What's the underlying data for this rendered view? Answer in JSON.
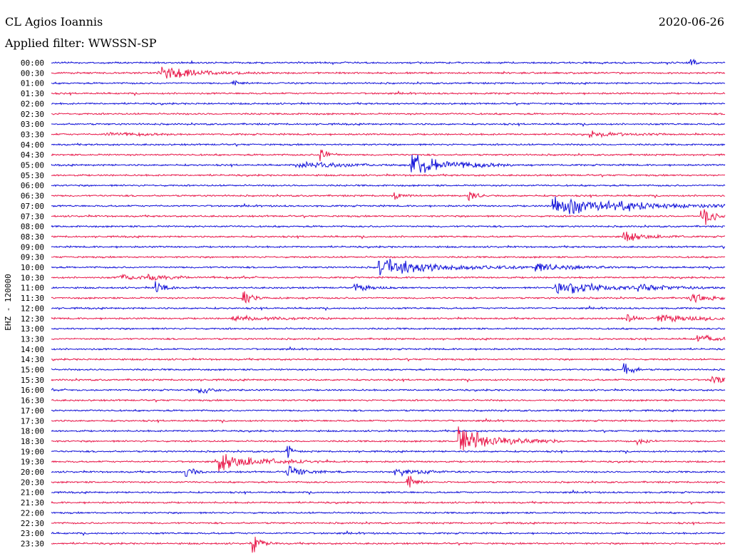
{
  "header": {
    "station": "CL Agios Ioannis",
    "date": "2020-06-26",
    "filter": "Applied filter: WWSSN-SP"
  },
  "chart_data": {
    "type": "line",
    "ylabel": "EHZ - 120000",
    "rows": [
      "00:00",
      "00:30",
      "01:00",
      "01:30",
      "02:00",
      "02:30",
      "03:00",
      "03:30",
      "04:00",
      "04:30",
      "05:00",
      "05:30",
      "06:00",
      "06:30",
      "07:00",
      "07:30",
      "08:00",
      "08:30",
      "09:00",
      "09:30",
      "10:00",
      "10:30",
      "11:00",
      "11:30",
      "12:00",
      "12:30",
      "13:00",
      "13:30",
      "14:00",
      "14:30",
      "15:00",
      "15:30",
      "16:00",
      "16:30",
      "17:00",
      "17:30",
      "18:00",
      "18:30",
      "19:00",
      "19:30",
      "20:00",
      "20:30",
      "21:00",
      "21:30",
      "22:00",
      "22:30",
      "23:00",
      "23:30"
    ],
    "colors": [
      "#1010d8",
      "#e8184a"
    ],
    "events": [
      {
        "row": 0,
        "t": 0.95,
        "amp": 1.0,
        "dur": 0.005
      },
      {
        "row": 1,
        "t": 0.16,
        "amp": 0.6,
        "dur": 0.05
      },
      {
        "row": 1,
        "t": 0.165,
        "amp": 1.4,
        "dur": 0.04
      },
      {
        "row": 2,
        "t": 0.27,
        "amp": 0.6,
        "dur": 0.01
      },
      {
        "row": 7,
        "t": 0.08,
        "amp": 0.6,
        "dur": 0.04
      },
      {
        "row": 7,
        "t": 0.8,
        "amp": 0.7,
        "dur": 0.04
      },
      {
        "row": 9,
        "t": 0.4,
        "amp": 1.5,
        "dur": 0.01
      },
      {
        "row": 10,
        "t": 0.535,
        "amp": 3.0,
        "dur": 0.05
      },
      {
        "row": 10,
        "t": 0.37,
        "amp": 0.8,
        "dur": 0.06
      },
      {
        "row": 13,
        "t": 0.51,
        "amp": 1.1,
        "dur": 0.01
      },
      {
        "row": 13,
        "t": 0.62,
        "amp": 1.5,
        "dur": 0.01
      },
      {
        "row": 14,
        "t": 0.745,
        "amp": 2.4,
        "dur": 0.1
      },
      {
        "row": 15,
        "t": 0.965,
        "amp": 2.6,
        "dur": 0.015
      },
      {
        "row": 17,
        "t": 0.85,
        "amp": 1.3,
        "dur": 0.03
      },
      {
        "row": 20,
        "t": 0.487,
        "amp": 1.9,
        "dur": 0.08
      },
      {
        "row": 20,
        "t": 0.72,
        "amp": 1.1,
        "dur": 0.04
      },
      {
        "row": 21,
        "t": 0.1,
        "amp": 0.6,
        "dur": 0.06
      },
      {
        "row": 21,
        "t": 0.14,
        "amp": 0.8,
        "dur": 0.02
      },
      {
        "row": 22,
        "t": 0.155,
        "amp": 1.6,
        "dur": 0.01
      },
      {
        "row": 22,
        "t": 0.45,
        "amp": 1.0,
        "dur": 0.02
      },
      {
        "row": 22,
        "t": 0.75,
        "amp": 2.0,
        "dur": 0.05
      },
      {
        "row": 22,
        "t": 0.87,
        "amp": 0.8,
        "dur": 0.05
      },
      {
        "row": 23,
        "t": 0.285,
        "amp": 1.8,
        "dur": 0.01
      },
      {
        "row": 23,
        "t": 0.95,
        "amp": 0.8,
        "dur": 0.05
      },
      {
        "row": 25,
        "t": 0.27,
        "amp": 0.8,
        "dur": 0.05
      },
      {
        "row": 25,
        "t": 0.855,
        "amp": 1.3,
        "dur": 0.01
      },
      {
        "row": 25,
        "t": 0.9,
        "amp": 0.9,
        "dur": 0.06
      },
      {
        "row": 27,
        "t": 0.96,
        "amp": 0.9,
        "dur": 0.03
      },
      {
        "row": 30,
        "t": 0.85,
        "amp": 2.0,
        "dur": 0.01
      },
      {
        "row": 31,
        "t": 0.98,
        "amp": 1.3,
        "dur": 0.02
      },
      {
        "row": 32,
        "t": 0.22,
        "amp": 0.9,
        "dur": 0.02
      },
      {
        "row": 37,
        "t": 0.605,
        "amp": 3.0,
        "dur": 0.05
      },
      {
        "row": 37,
        "t": 0.87,
        "amp": 0.8,
        "dur": 0.01
      },
      {
        "row": 38,
        "t": 0.35,
        "amp": 2.0,
        "dur": 0.005
      },
      {
        "row": 39,
        "t": 0.25,
        "amp": 2.2,
        "dur": 0.05
      },
      {
        "row": 40,
        "t": 0.2,
        "amp": 1.4,
        "dur": 0.01
      },
      {
        "row": 40,
        "t": 0.35,
        "amp": 1.6,
        "dur": 0.02
      },
      {
        "row": 40,
        "t": 0.51,
        "amp": 0.9,
        "dur": 0.04
      },
      {
        "row": 41,
        "t": 0.53,
        "amp": 1.7,
        "dur": 0.01
      },
      {
        "row": 47,
        "t": 0.3,
        "amp": 2.5,
        "dur": 0.01
      }
    ]
  }
}
